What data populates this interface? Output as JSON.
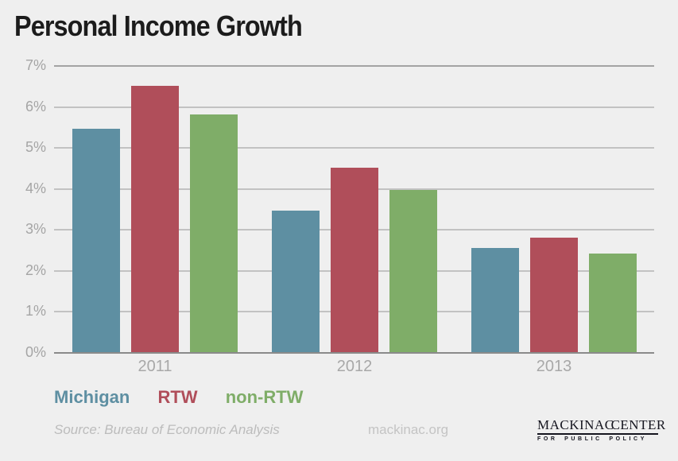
{
  "title": "Personal Income Growth",
  "chart_data": {
    "type": "bar",
    "categories": [
      "2011",
      "2012",
      "2013"
    ],
    "series": [
      {
        "name": "Michigan",
        "color": "#5e8fa2",
        "values": [
          5.45,
          3.45,
          2.55
        ]
      },
      {
        "name": "RTW",
        "color": "#b04e5a",
        "values": [
          6.5,
          4.5,
          2.8
        ]
      },
      {
        "name": "non-RTW",
        "color": "#7fad68",
        "values": [
          5.8,
          3.95,
          2.4
        ]
      }
    ],
    "title": "Personal Income Growth",
    "xlabel": "",
    "ylabel": "",
    "ylim": [
      0,
      7
    ],
    "ytick_labels": [
      "7%",
      "6%",
      "5%",
      "4%",
      "3%",
      "2%",
      "1%",
      "0%"
    ],
    "grid": true,
    "legend_position": "bottom-left"
  },
  "legend": {
    "items": [
      {
        "label": "Michigan",
        "color": "#5e8fa2"
      },
      {
        "label": "RTW",
        "color": "#b04e5a"
      },
      {
        "label": "non-RTW",
        "color": "#7fad68"
      }
    ]
  },
  "footer": {
    "source": "Source: Bureau of Economic Analysis",
    "site": "mackinac.org"
  },
  "logo": {
    "name_left": "MACKINAC",
    "name_right": "CENTER",
    "tagline": "FOR PUBLIC POLICY",
    "accent": "#1e7e91"
  },
  "colors": {
    "background": "#efefef",
    "title_text": "#1c1c1c",
    "axis_label": "#a5a5a5",
    "gridline": "#c2c2c2",
    "baseline": "#8a8a8a"
  }
}
